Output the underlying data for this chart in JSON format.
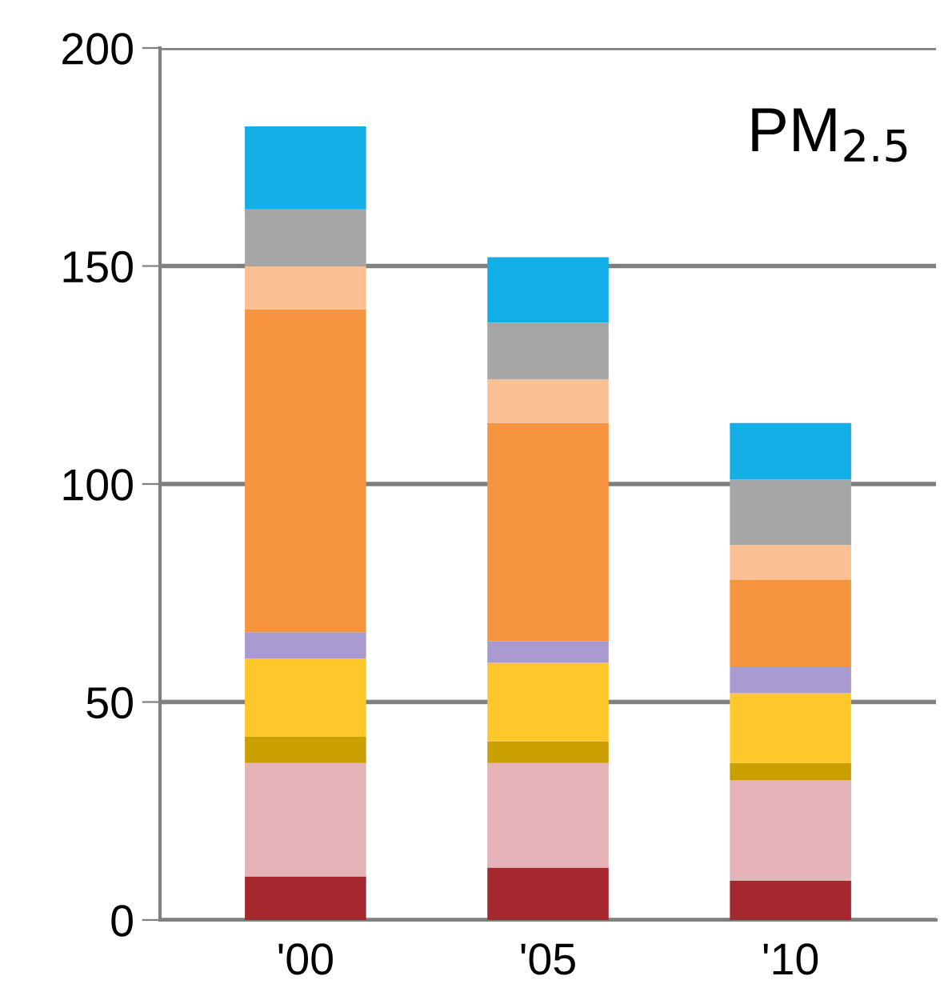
{
  "chart_data": {
    "type": "bar",
    "title": "PM$_{2.5}$",
    "categories": [
      "'00",
      "'05",
      "'10"
    ],
    "stacked": true,
    "series": [
      {
        "color": "#a5282f",
        "values": [
          10,
          12,
          9
        ]
      },
      {
        "color": "#e6b3b8",
        "values": [
          26,
          24,
          23
        ]
      },
      {
        "color": "#c9a000",
        "values": [
          6,
          5,
          4
        ]
      },
      {
        "color": "#ffc82a",
        "values": [
          18,
          18,
          16
        ]
      },
      {
        "color": "#a99ad0",
        "values": [
          6,
          5,
          6
        ]
      },
      {
        "color": "#f7943f",
        "values": [
          74,
          50,
          20
        ]
      },
      {
        "color": "#fbc093",
        "values": [
          10,
          10,
          8
        ]
      },
      {
        "color": "#a6a6a6",
        "values": [
          13,
          13,
          15
        ]
      },
      {
        "color": "#13aee6",
        "values": [
          19,
          15,
          13
        ]
      }
    ],
    "ylim": [
      0,
      200
    ],
    "yticks": [
      0,
      50,
      100,
      150,
      200
    ],
    "grid": "y"
  }
}
